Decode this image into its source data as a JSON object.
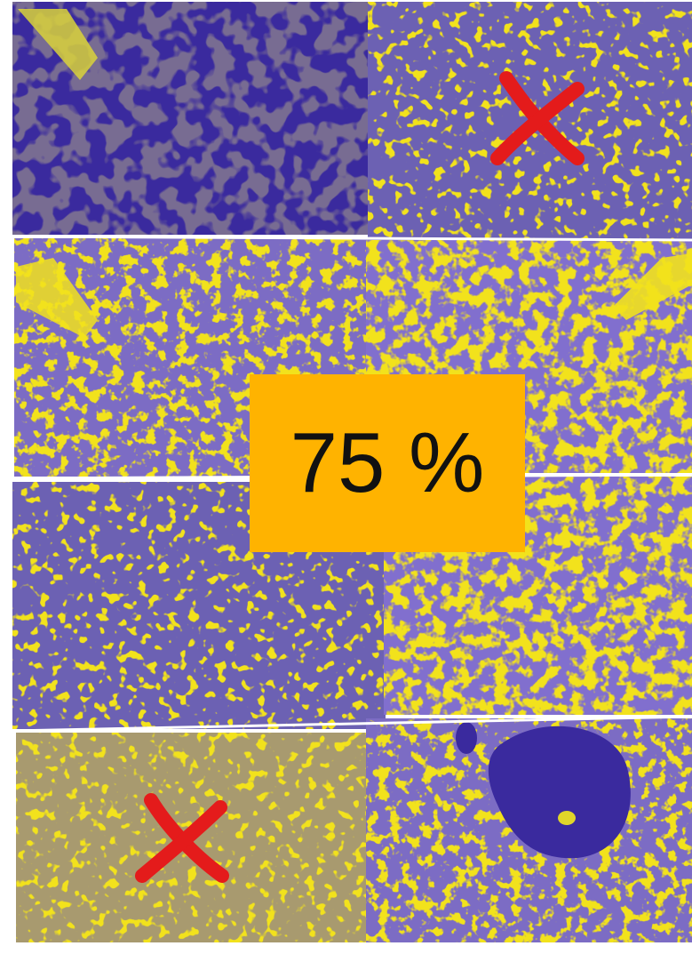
{
  "photo": {
    "label": "75 %",
    "colors": {
      "yellow": "#f2e21c",
      "blue": "#3a2a9e",
      "label_bg": "#ffb300",
      "mark": "#e41b1b",
      "border": "#ffffff"
    },
    "marks": [
      "x-mark-icon",
      "x-mark-icon"
    ]
  }
}
